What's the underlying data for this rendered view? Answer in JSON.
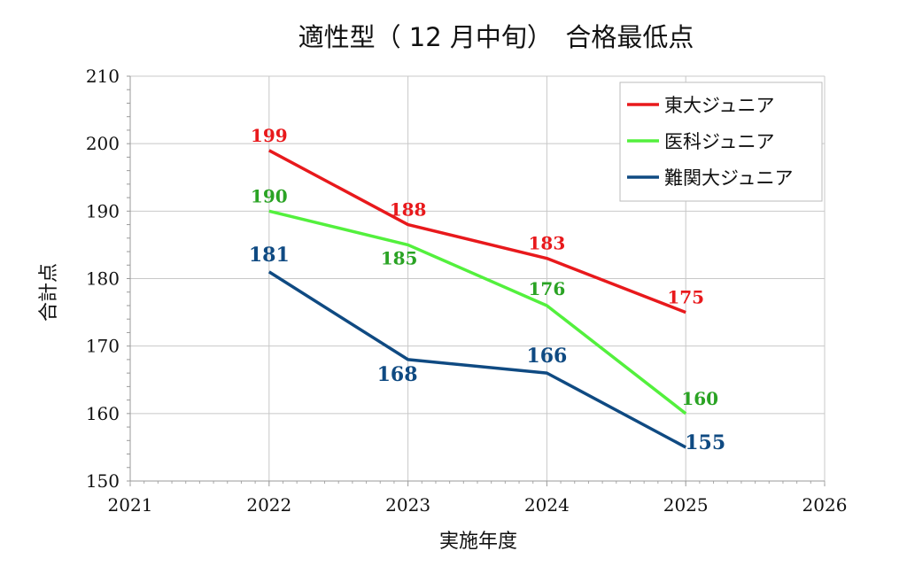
{
  "chart_data": {
    "type": "line",
    "title": "適性型（ 12 月中旬）　合格最低点",
    "xlabel": "実施年度",
    "ylabel": "合計点",
    "xlim": [
      2021,
      2026
    ],
    "ylim": [
      150,
      210
    ],
    "x_ticks": [
      "2021",
      "2022",
      "2023",
      "2024",
      "2025",
      "2026"
    ],
    "y_ticks": [
      "150",
      "160",
      "170",
      "180",
      "190",
      "200",
      "210"
    ],
    "grid": true,
    "legend_position": "top-right",
    "series": [
      {
        "name": "東大ジュニア",
        "color": "#e8191c",
        "x": [
          2022,
          2023,
          2024,
          2025
        ],
        "values": [
          199,
          188,
          183,
          175
        ],
        "labels": [
          "199",
          "188",
          "183",
          "175"
        ]
      },
      {
        "name": "医科ジュニア",
        "color": "#53f03d",
        "label_color": "#2aa324",
        "x": [
          2022,
          2023,
          2024,
          2025
        ],
        "values": [
          190,
          185,
          176,
          160
        ],
        "labels": [
          "190",
          "185",
          "176",
          "160"
        ]
      },
      {
        "name": "難関大ジュニア",
        "color": "#0f4a82",
        "x": [
          2022,
          2023,
          2024,
          2025
        ],
        "values": [
          181,
          168,
          166,
          155
        ],
        "labels": [
          "181",
          "168",
          "166",
          "155"
        ]
      }
    ]
  }
}
